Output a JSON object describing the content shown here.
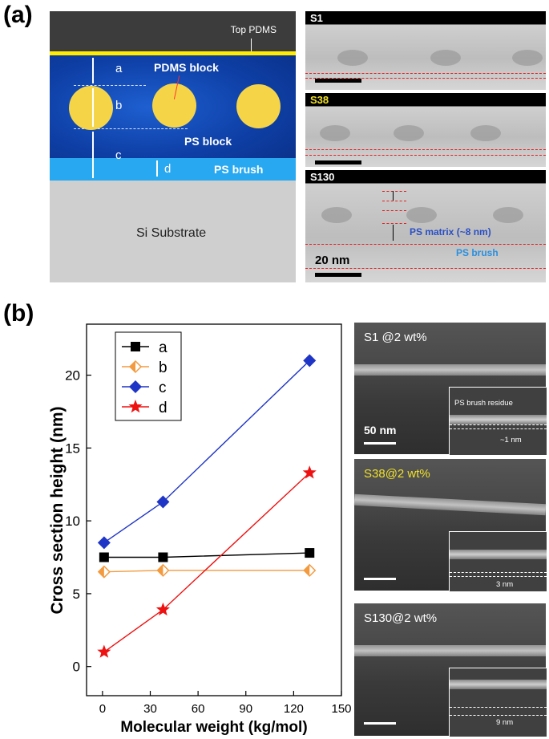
{
  "panels": {
    "a": "(a)",
    "b": "(b)"
  },
  "schematic": {
    "top_pdms": "Top PDMS",
    "pdms_block": "PDMS block",
    "ps_block": "PS block",
    "ps_brush": "PS brush",
    "si_substrate": "Si Substrate",
    "letters": [
      "a",
      "b",
      "c",
      "d"
    ],
    "colors": {
      "top_pdms": "#3c3c3c",
      "yellow_line": "#ffec00",
      "ps_block": "#0e3fa6",
      "ps_brush": "#28a8f0",
      "pdms_sphere": "#f5d547",
      "substrate": "#cfcfcf"
    }
  },
  "tem": {
    "s1": "S1",
    "s38": "S38",
    "s130": "S130",
    "ps_matrix": "PS matrix (~8 nm)",
    "ps_brush": "PS brush",
    "scale": "20 nm"
  },
  "chart_data": {
    "type": "line",
    "xlabel": "Molecular weight (kg/mol)",
    "ylabel": "Cross section height (nm)",
    "xlim": [
      -10,
      150
    ],
    "ylim": [
      -2,
      23.5
    ],
    "xticks": [
      0,
      30,
      60,
      90,
      120,
      150
    ],
    "yticks": [
      0,
      5,
      10,
      15,
      20
    ],
    "grid": false,
    "legend_position": "top-left",
    "series": [
      {
        "name": "a",
        "color": "#000000",
        "marker": "square",
        "x": [
          1,
          38,
          130
        ],
        "y": [
          7.5,
          7.5,
          7.8
        ]
      },
      {
        "name": "b",
        "color": "#f39a3e",
        "marker": "diamond-half",
        "x": [
          1,
          38,
          130
        ],
        "y": [
          6.5,
          6.6,
          6.6
        ]
      },
      {
        "name": "c",
        "color": "#1f35c6",
        "marker": "diamond",
        "x": [
          1,
          38,
          130
        ],
        "y": [
          8.5,
          11.3,
          21.0
        ]
      },
      {
        "name": "d",
        "color": "#ee1111",
        "marker": "star",
        "x": [
          1,
          38,
          130
        ],
        "y": [
          1.0,
          3.9,
          13.3
        ]
      }
    ]
  },
  "sem": {
    "p1": {
      "title": "S1 @2 wt%",
      "title_color": "#ffffff",
      "scale": "50 nm",
      "residue": "PS brush residue",
      "value": "~1 nm"
    },
    "p2": {
      "title": "S38@2 wt%",
      "title_color": "#f0e028",
      "value": "3 nm"
    },
    "p3": {
      "title": "S130@2 wt%",
      "title_color": "#ffffff",
      "value": "9 nm"
    }
  }
}
